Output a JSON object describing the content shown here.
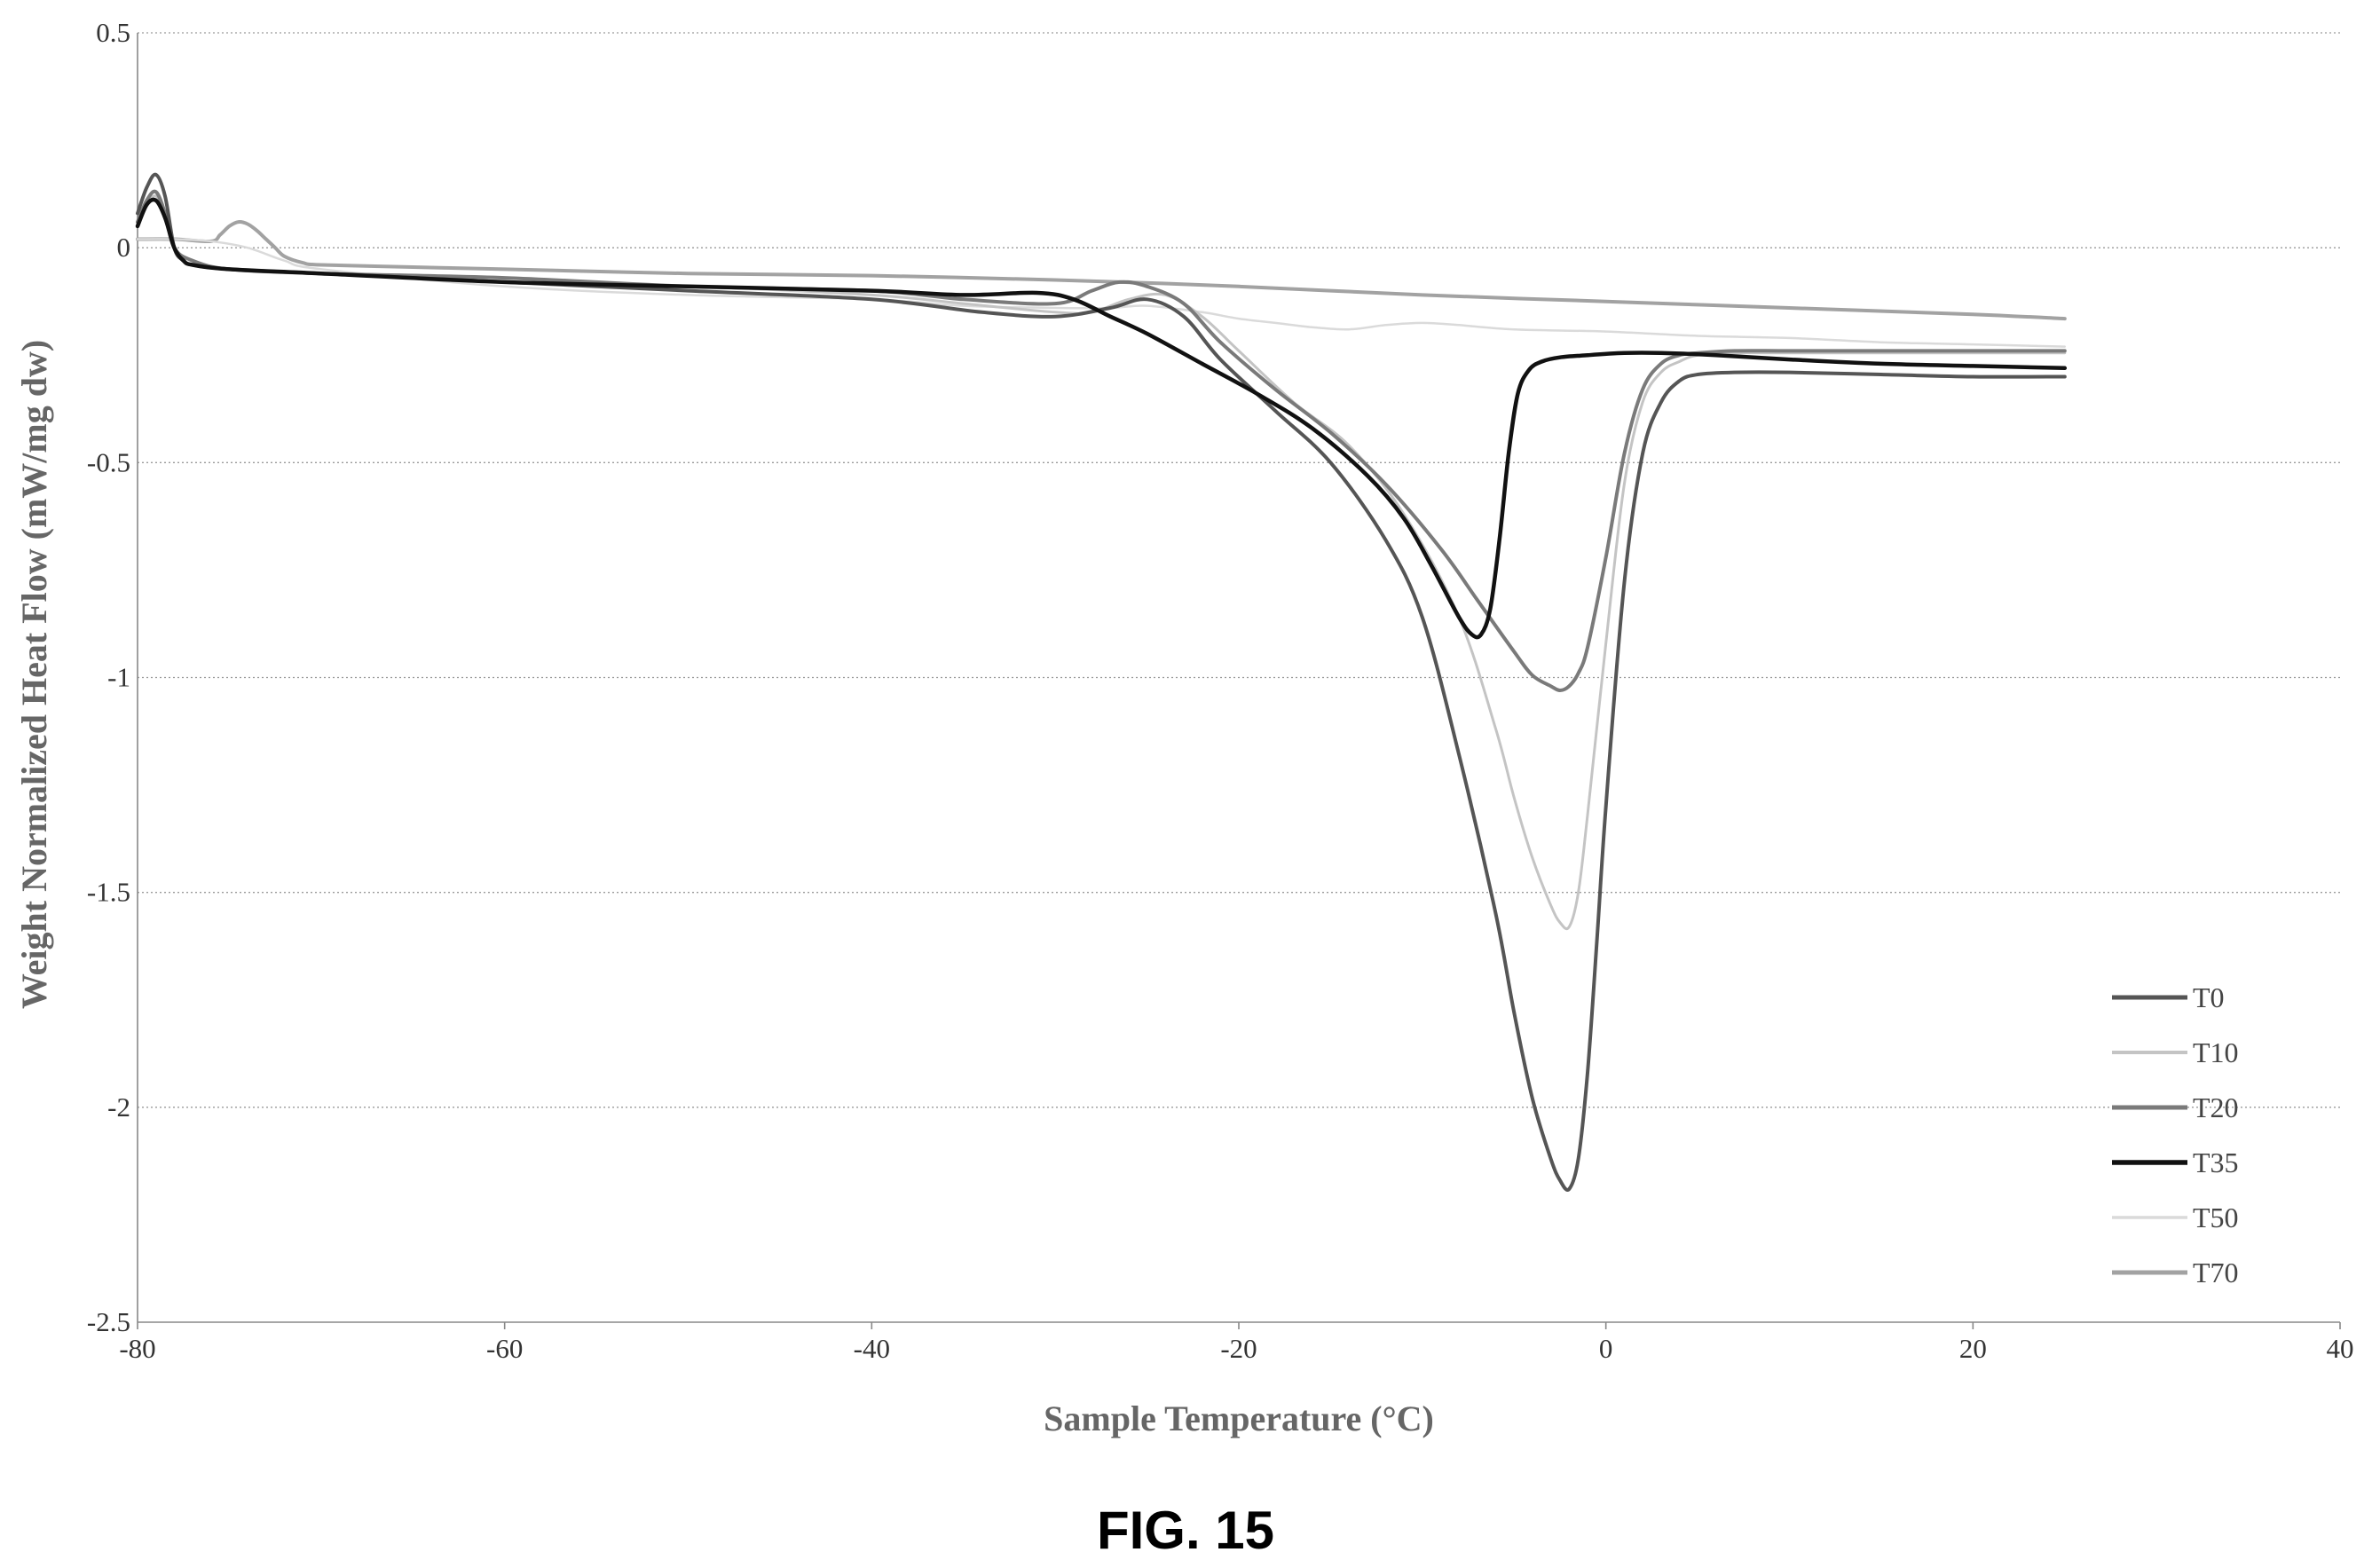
{
  "figure_caption": "FIG. 15",
  "chart_data": {
    "type": "line",
    "title": "",
    "xlabel": "Sample Temperature (°C)",
    "ylabel": "Weight Normalized Heat Flow (mW/mg dw)",
    "xlim": [
      -80,
      40
    ],
    "ylim": [
      -2.5,
      0.5
    ],
    "x_ticks": [
      -80,
      -60,
      -40,
      -20,
      0,
      20,
      40
    ],
    "y_ticks": [
      0.5,
      0,
      -0.5,
      -1,
      -1.5,
      -2,
      -2.5
    ],
    "x_tick_labels": [
      "-80",
      "-60",
      "-40",
      "-20",
      "0",
      "20",
      "40"
    ],
    "y_tick_labels": [
      "0.5",
      "0",
      "-0.5",
      "-1",
      "-1.5",
      "-2",
      "-2.5"
    ],
    "grid": "horizontal",
    "legend_position": "bottom-right",
    "series": [
      {
        "name": "T0",
        "color": "#555555",
        "width": 4,
        "x": [
          -80,
          -79.5,
          -79,
          -78.5,
          -78,
          -77.5,
          -77,
          -75,
          -70,
          -60,
          -50,
          -40,
          -34,
          -30,
          -27,
          -25,
          -23,
          -21,
          -18,
          -15,
          -12,
          -10,
          -8,
          -6,
          -5,
          -4,
          -3,
          -2.5,
          -2,
          -1.5,
          -1,
          -0.5,
          0,
          1,
          2,
          3,
          4,
          5,
          7,
          10,
          15,
          20,
          25
        ],
        "y": [
          0.08,
          0.14,
          0.17,
          0.12,
          0.0,
          -0.03,
          -0.04,
          -0.05,
          -0.06,
          -0.08,
          -0.1,
          -0.12,
          -0.15,
          -0.16,
          -0.14,
          -0.12,
          -0.16,
          -0.26,
          -0.38,
          -0.5,
          -0.68,
          -0.86,
          -1.18,
          -1.55,
          -1.78,
          -1.98,
          -2.12,
          -2.17,
          -2.19,
          -2.12,
          -1.92,
          -1.62,
          -1.3,
          -0.78,
          -0.48,
          -0.36,
          -0.31,
          -0.295,
          -0.29,
          -0.29,
          -0.295,
          -0.3,
          -0.3
        ]
      },
      {
        "name": "T10",
        "color": "#c4c4c4",
        "width": 3,
        "x": [
          -80,
          -79.5,
          -79,
          -78.5,
          -78,
          -77,
          -75,
          -70,
          -60,
          -50,
          -40,
          -35,
          -30,
          -28,
          -26,
          -24,
          -22,
          -20,
          -17,
          -14,
          -11,
          -8,
          -6,
          -5,
          -4,
          -3,
          -2.5,
          -2,
          -1.5,
          -1,
          0,
          1,
          2,
          3,
          4,
          5,
          7,
          10,
          15,
          20,
          25
        ],
        "y": [
          0.05,
          0.1,
          0.12,
          0.08,
          0.0,
          -0.03,
          -0.05,
          -0.06,
          -0.08,
          -0.09,
          -0.11,
          -0.13,
          -0.15,
          -0.15,
          -0.12,
          -0.11,
          -0.16,
          -0.24,
          -0.36,
          -0.46,
          -0.62,
          -0.86,
          -1.12,
          -1.28,
          -1.42,
          -1.53,
          -1.57,
          -1.58,
          -1.5,
          -1.32,
          -0.92,
          -0.55,
          -0.36,
          -0.29,
          -0.265,
          -0.25,
          -0.245,
          -0.245,
          -0.245,
          -0.245,
          -0.245
        ]
      },
      {
        "name": "T20",
        "color": "#7a7a7a",
        "width": 4,
        "x": [
          -80,
          -79.5,
          -79,
          -78.5,
          -78,
          -77,
          -75,
          -70,
          -60,
          -50,
          -40,
          -35,
          -30,
          -28,
          -26.5,
          -25,
          -23,
          -21,
          -18,
          -15,
          -12,
          -9,
          -7,
          -5,
          -4,
          -3,
          -2.5,
          -2,
          -1.5,
          -1,
          0,
          1,
          2,
          3,
          4,
          5,
          7,
          10,
          15,
          20,
          25
        ],
        "y": [
          0.06,
          0.11,
          0.13,
          0.08,
          0.0,
          -0.03,
          -0.05,
          -0.06,
          -0.07,
          -0.09,
          -0.1,
          -0.12,
          -0.13,
          -0.1,
          -0.08,
          -0.09,
          -0.13,
          -0.22,
          -0.33,
          -0.43,
          -0.55,
          -0.7,
          -0.82,
          -0.94,
          -0.995,
          -1.02,
          -1.03,
          -1.02,
          -0.99,
          -0.93,
          -0.72,
          -0.48,
          -0.33,
          -0.27,
          -0.25,
          -0.245,
          -0.24,
          -0.24,
          -0.24,
          -0.24,
          -0.24
        ]
      },
      {
        "name": "T35",
        "color": "#111111",
        "width": 4.5,
        "x": [
          -80,
          -79.5,
          -79,
          -78.5,
          -78,
          -77.5,
          -77,
          -75,
          -70,
          -60,
          -50,
          -40,
          -35,
          -31,
          -29,
          -27,
          -25,
          -22,
          -19,
          -16,
          -13,
          -11,
          -9.5,
          -8,
          -7.3,
          -6.8,
          -6.3,
          -5.8,
          -5.3,
          -4.8,
          -4.2,
          -3.5,
          -2.5,
          -1,
          1,
          3,
          6,
          10,
          15,
          20,
          25
        ],
        "y": [
          0.05,
          0.1,
          0.11,
          0.07,
          0.0,
          -0.03,
          -0.04,
          -0.05,
          -0.06,
          -0.08,
          -0.09,
          -0.1,
          -0.11,
          -0.105,
          -0.12,
          -0.16,
          -0.2,
          -0.27,
          -0.34,
          -0.42,
          -0.53,
          -0.63,
          -0.74,
          -0.86,
          -0.9,
          -0.9,
          -0.84,
          -0.68,
          -0.48,
          -0.34,
          -0.285,
          -0.265,
          -0.255,
          -0.25,
          -0.245,
          -0.245,
          -0.25,
          -0.26,
          -0.27,
          -0.275,
          -0.28
        ]
      },
      {
        "name": "T50",
        "color": "#dadada",
        "width": 2.5,
        "x": [
          -80,
          -78,
          -76,
          -74,
          -72,
          -70,
          -60,
          -50,
          -40,
          -35,
          -30,
          -27,
          -25,
          -22,
          -20,
          -18,
          -16,
          -14,
          -12,
          -10,
          -8,
          -5,
          0,
          5,
          10,
          15,
          20,
          25
        ],
        "y": [
          0.02,
          0.02,
          0.015,
          0.0,
          -0.03,
          -0.05,
          -0.09,
          -0.11,
          -0.12,
          -0.135,
          -0.14,
          -0.14,
          -0.135,
          -0.15,
          -0.165,
          -0.175,
          -0.185,
          -0.19,
          -0.18,
          -0.175,
          -0.18,
          -0.19,
          -0.195,
          -0.205,
          -0.21,
          -0.22,
          -0.225,
          -0.23
        ]
      },
      {
        "name": "T70",
        "color": "#a2a2a2",
        "width": 4,
        "x": [
          -80,
          -78,
          -76,
          -75.5,
          -75,
          -74.5,
          -74,
          -73.5,
          -73,
          -72.5,
          -72,
          -71,
          -70,
          -65,
          -60,
          -50,
          -40,
          -30,
          -20,
          -10,
          0,
          10,
          20,
          25
        ],
        "y": [
          0.02,
          0.02,
          0.015,
          0.03,
          0.05,
          0.06,
          0.055,
          0.04,
          0.02,
          0.0,
          -0.02,
          -0.035,
          -0.04,
          -0.045,
          -0.05,
          -0.06,
          -0.065,
          -0.075,
          -0.09,
          -0.11,
          -0.125,
          -0.14,
          -0.155,
          -0.165
        ]
      }
    ]
  }
}
